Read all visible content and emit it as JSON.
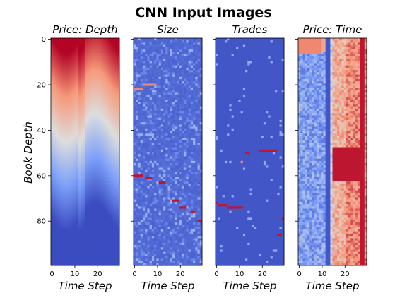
{
  "chart_data": {
    "type": "heatmap",
    "title": "CNN Input Images",
    "colormap": "coolwarm",
    "shared_y": true,
    "ylabel": "Book Depth",
    "ylim": [
      99.5,
      -0.5
    ],
    "yticks": [
      0,
      20,
      40,
      60,
      80
    ],
    "xlim": [
      -0.5,
      29.5
    ],
    "xticks": [
      0,
      10,
      20
    ],
    "panels": [
      {
        "title": "Price: Depth",
        "xlabel": "Time Step",
        "pattern": "vertical gradient: red at depth 0 fading through white near depth 45 to blue at depth 99; slightly more saturated red column near time step 13",
        "highlights": []
      },
      {
        "title": "Size",
        "xlabel": "Time Step",
        "pattern": "mostly blue with scattered lighter speckles",
        "highlights": [
          {
            "time_start": 4,
            "time_end": 10,
            "depth": 20,
            "level": "orange"
          },
          {
            "time_start": 0,
            "time_end": 4,
            "depth": 22,
            "level": "orange"
          },
          {
            "time_start": 0,
            "time_end": 4,
            "depth": 60,
            "level": "red"
          },
          {
            "time_start": 5,
            "time_end": 8,
            "depth": 61,
            "level": "red"
          },
          {
            "time_start": 11,
            "time_end": 14,
            "depth": 63,
            "level": "red"
          },
          {
            "time_start": 17,
            "time_end": 20,
            "depth": 71,
            "level": "red"
          },
          {
            "time_start": 20,
            "time_end": 23,
            "depth": 74,
            "level": "red"
          },
          {
            "time_start": 25,
            "time_end": 27,
            "depth": 76,
            "level": "red"
          },
          {
            "time_start": 28,
            "time_end": 30,
            "depth": 80,
            "level": "red"
          }
        ]
      },
      {
        "title": "Trades",
        "xlabel": "Time Step",
        "pattern": "uniform blue with sparse light blue marks",
        "highlights": [
          {
            "time_start": 13,
            "time_end": 15,
            "depth": 50,
            "level": "red"
          },
          {
            "time_start": 19,
            "time_end": 27,
            "depth": 49,
            "level": "red"
          },
          {
            "time_start": 11,
            "time_end": 12,
            "depth": 54,
            "level": "orange"
          },
          {
            "time_start": 0,
            "time_end": 1,
            "depth": 72,
            "level": "red"
          },
          {
            "time_start": 1,
            "time_end": 5,
            "depth": 73,
            "level": "red"
          },
          {
            "time_start": 5,
            "time_end": 12,
            "depth": 74,
            "level": "red"
          },
          {
            "time_start": 29,
            "time_end": 30,
            "depth": 79,
            "level": "red"
          },
          {
            "time_start": 27,
            "time_end": 29,
            "depth": 86,
            "level": "red"
          }
        ]
      },
      {
        "title": "Price: Time",
        "xlabel": "Time Step",
        "pattern": "blue on the left and a blue vertical band near time step 12-14; red and white on the right, strong red block around depth 48-62; red column at time step 27-29",
        "highlights": [
          {
            "time_start": 15,
            "time_end": 27,
            "depth_start": 48,
            "depth_end": 62,
            "level": "red"
          },
          {
            "time_start": 27,
            "time_end": 29,
            "depth_start": 0,
            "depth_end": 99,
            "level": "red"
          },
          {
            "time_start": 12,
            "time_end": 14,
            "depth_start": 0,
            "depth_end": 99,
            "level": "blue"
          },
          {
            "time_start": 0,
            "time_end": 10,
            "depth_start": 0,
            "depth_end": 6,
            "level": "orange"
          }
        ]
      }
    ]
  }
}
